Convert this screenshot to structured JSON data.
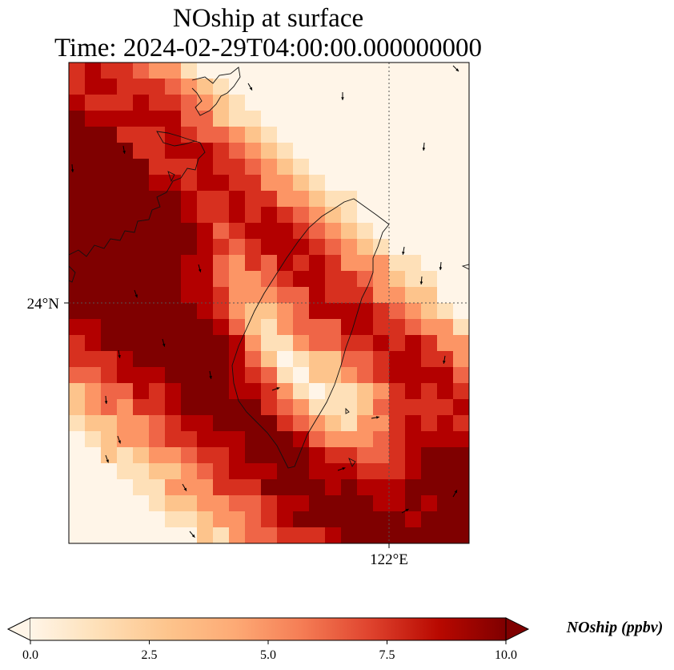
{
  "title": {
    "line1": "NOship at surface",
    "line2": "Time: 2024-02-29T04:00:00.000000000"
  },
  "map": {
    "lat_label": "24°N",
    "lon_label": "122°E",
    "colormap": [
      "#fff5e8",
      "#fee0b8",
      "#fdc48c",
      "#fc9565",
      "#ef6547",
      "#d7301f",
      "#b30000",
      "#7f0000"
    ]
  },
  "colorbar": {
    "label": "NOship (ppbv)",
    "ticks": [
      "0.0",
      "2.5",
      "5.0",
      "7.5",
      "10.0"
    ],
    "min": 0,
    "max": 10,
    "extend": "both"
  }
}
